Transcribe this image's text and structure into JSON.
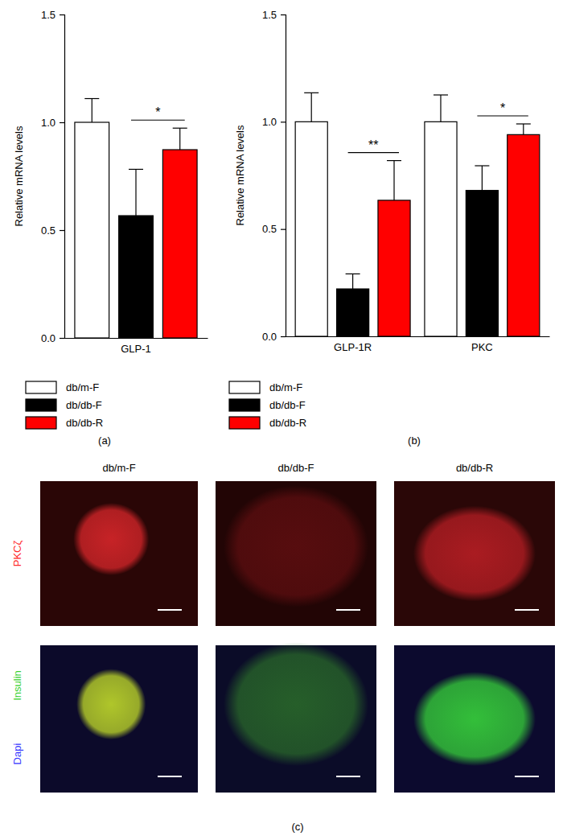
{
  "chart_data": [
    {
      "type": "bar",
      "caption": "(a)",
      "y_label": "Relative mRNA levels",
      "categories": [
        "GLP-1"
      ],
      "series": [
        {
          "name": "db/m-F",
          "color": "#ffffff",
          "values": [
            1.0
          ],
          "errors": [
            0.11
          ]
        },
        {
          "name": "db/db-F",
          "color": "#000000",
          "values": [
            0.567
          ],
          "errors": [
            0.215
          ]
        },
        {
          "name": "db/db-R",
          "color": "#ff0000",
          "values": [
            0.873
          ],
          "errors": [
            0.1
          ]
        }
      ],
      "ylim": [
        0,
        1.5
      ],
      "yticks": [
        {
          "value": 0,
          "label": "0.0"
        },
        {
          "value": 0.5,
          "label": "0.5"
        },
        {
          "value": 1,
          "label": "1.0"
        },
        {
          "value": 1.5,
          "label": "1.5"
        }
      ],
      "annotations": [
        {
          "text": "*",
          "category": "GLP-1",
          "between": [
            "db/db-F",
            "db/db-R"
          ]
        }
      ],
      "legend": "bottom"
    },
    {
      "type": "bar",
      "caption": "(b)",
      "y_label": "Relative mRNA levels",
      "categories": [
        "GLP-1R",
        "PKC"
      ],
      "series": [
        {
          "name": "db/m-F",
          "color": "#ffffff",
          "values": [
            1.0,
            1.0
          ],
          "errors": [
            0.135,
            0.125
          ]
        },
        {
          "name": "db/db-F",
          "color": "#000000",
          "values": [
            0.221,
            0.68
          ],
          "errors": [
            0.07,
            0.115
          ]
        },
        {
          "name": "db/db-R",
          "color": "#ff0000",
          "values": [
            0.634,
            0.94
          ],
          "errors": [
            0.185,
            0.05
          ]
        }
      ],
      "ylim": [
        0,
        1.5
      ],
      "yticks": [
        {
          "value": 0,
          "label": "0.0"
        },
        {
          "value": 0.5,
          "label": "0.5"
        },
        {
          "value": 1,
          "label": "1.0"
        },
        {
          "value": 1.5,
          "label": "1.5"
        }
      ],
      "annotations": [
        {
          "text": "**",
          "category": "GLP-1R",
          "between": [
            "db/db-F",
            "db/db-R"
          ]
        },
        {
          "text": "*",
          "category": "PKC",
          "between": [
            "db/db-F",
            "db/db-R"
          ]
        }
      ],
      "legend": "bottom"
    }
  ],
  "micrographs": {
    "caption": "(c)",
    "columns": [
      "db/m-F",
      "db/db-F",
      "db/db-R"
    ],
    "rows": [
      {
        "labels": [
          "PKCζ"
        ]
      },
      {
        "labels": [
          "Insulin",
          "Dapi"
        ]
      }
    ]
  }
}
